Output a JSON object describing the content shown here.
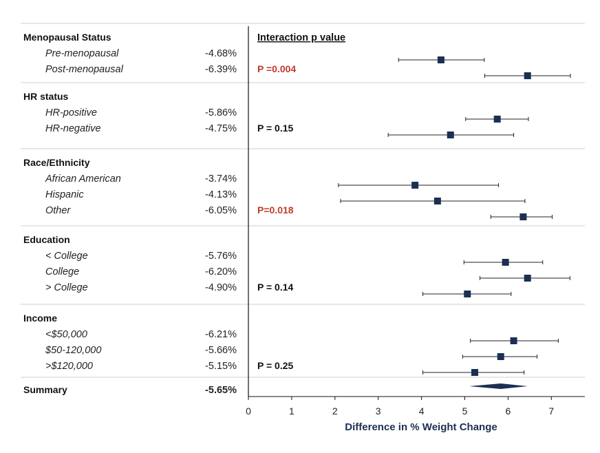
{
  "chart_data": {
    "type": "forest",
    "xlabel": "Difference in % Weight Change",
    "xlim": [
      0,
      7.8
    ],
    "xticks": [
      0,
      1,
      2,
      3,
      4,
      5,
      6,
      7
    ],
    "interaction_header": "Interaction p value",
    "groups": [
      {
        "label": "Menopausal Status",
        "rows": [
          {
            "label": "Pre-menopausal",
            "value_text": "-4.68%",
            "est": 4.45,
            "lo": 3.47,
            "hi": 5.45
          },
          {
            "label": "Post-menopausal",
            "value_text": "-6.39%",
            "est": 6.45,
            "lo": 5.46,
            "hi": 7.44
          }
        ],
        "p_text": "P =0.004",
        "p_color": "#c0392b"
      },
      {
        "label": "HR status",
        "rows": [
          {
            "label": "HR-positive",
            "value_text": "-5.86%",
            "est": 5.75,
            "lo": 5.02,
            "hi": 6.47
          },
          {
            "label": "HR-negative",
            "value_text": "-4.75%",
            "est": 4.67,
            "lo": 3.23,
            "hi": 6.13
          }
        ],
        "p_text": "P = 0.15",
        "p_color": "#111111"
      },
      {
        "label": "Race/Ethnicity",
        "rows": [
          {
            "label": "African American",
            "value_text": "-3.74%",
            "est": 3.85,
            "lo": 2.08,
            "hi": 5.78
          },
          {
            "label": "Hispanic",
            "value_text": "-4.13%",
            "est": 4.37,
            "lo": 2.13,
            "hi": 6.39
          },
          {
            "label": "Other",
            "value_text": "-6.05%",
            "est": 6.35,
            "lo": 5.6,
            "hi": 7.02
          }
        ],
        "p_text": "P=0.018",
        "p_color": "#c0392b"
      },
      {
        "label": "Education",
        "rows": [
          {
            "label": "< College",
            "value_text": "-5.76%",
            "est": 5.94,
            "lo": 4.98,
            "hi": 6.8
          },
          {
            "label": "College",
            "value_text": "-6.20%",
            "est": 6.45,
            "lo": 5.35,
            "hi": 7.43
          },
          {
            "label": "> College",
            "value_text": "-4.90%",
            "est": 5.06,
            "lo": 4.03,
            "hi": 6.07
          }
        ],
        "p_text": "P = 0.14",
        "p_color": "#111111"
      },
      {
        "label": "Income",
        "rows": [
          {
            "label": "<$50,000",
            "value_text": "-6.21%",
            "est": 6.13,
            "lo": 5.13,
            "hi": 7.16
          },
          {
            "label": "$50-120,000",
            "value_text": "-5.66%",
            "est": 5.83,
            "lo": 4.95,
            "hi": 6.67
          },
          {
            "label": ">$120,000",
            "value_text": "-5.15%",
            "est": 5.23,
            "lo": 4.03,
            "hi": 6.37
          }
        ],
        "p_text": "P = 0.25",
        "p_color": "#111111"
      }
    ],
    "summary": {
      "label": "Summary",
      "value_text": "-5.65%",
      "est": 5.83,
      "lo": 5.1,
      "hi": 6.45
    },
    "colors": {
      "marker": "#1b2f52",
      "line": "#222222",
      "axis_label": "#1b2f52",
      "separator": "#cfcfcf"
    }
  }
}
